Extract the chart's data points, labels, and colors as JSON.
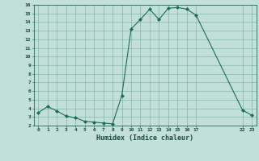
{
  "title": "",
  "xlabel": "Humidex (Indice chaleur)",
  "x_values": [
    0,
    1,
    2,
    3,
    4,
    5,
    6,
    7,
    8,
    9,
    10,
    11,
    12,
    13,
    14,
    15,
    16,
    17,
    22,
    23
  ],
  "y_values": [
    3.5,
    4.2,
    3.7,
    3.1,
    2.9,
    2.5,
    2.4,
    2.3,
    2.2,
    5.5,
    13.2,
    14.3,
    15.5,
    14.3,
    15.6,
    15.7,
    15.5,
    14.8,
    3.8,
    3.2
  ],
  "ylim": [
    2,
    16
  ],
  "xlim": [
    -0.5,
    23.5
  ],
  "xticks": [
    0,
    1,
    2,
    3,
    4,
    5,
    6,
    7,
    8,
    9,
    10,
    11,
    12,
    13,
    14,
    15,
    16,
    17,
    22,
    23
  ],
  "yticks": [
    2,
    3,
    4,
    5,
    6,
    7,
    8,
    9,
    10,
    11,
    12,
    13,
    14,
    15,
    16
  ],
  "line_color": "#1a6b5a",
  "marker_color": "#1a6b5a",
  "bg_color": "#c2e0d8",
  "grid_color": "#80b8aa",
  "axis_color": "#1a6b5a",
  "label_color": "#1a4a45",
  "tick_label_color": "#1a4a45"
}
